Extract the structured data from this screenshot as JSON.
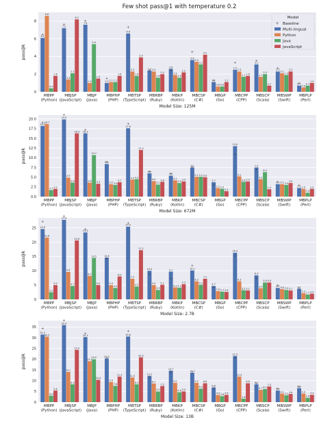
{
  "figure_title": "Few shot pass@1 with temperature 0.2",
  "legend": {
    "title": "Model",
    "items": [
      {
        "label": "Baseline",
        "marker": "+"
      },
      {
        "label": "Multi-lingual",
        "color": "#4C72B0"
      },
      {
        "label": "Python",
        "color": "#DD8452"
      },
      {
        "label": "Java",
        "color": "#55A868"
      },
      {
        "label": "JavaScript",
        "color": "#C44E52"
      }
    ]
  },
  "colors": {
    "background": "#EAEAF2",
    "grid": "#FFFFFF",
    "multi": "#4C72B0",
    "python": "#DD8452",
    "java": "#55A868",
    "javascript": "#C44E52"
  },
  "chart_data": [
    {
      "type": "bar",
      "xlabel": "Model Size: 125M",
      "ylabel": "pass@k",
      "ylim": [
        0,
        9
      ],
      "yticks": [
        0,
        2,
        4,
        6,
        8
      ],
      "categories": [
        "MBPP\n(Python)",
        "MBJSP\n(JavaScript)",
        "MBJP\n(Java)",
        "MBPHP\n(PHP)",
        "MBTSP\n(TypeScript)",
        "MBRBP\n(Ruby)",
        "MBKP\n(Kotlin)",
        "MBCSP\n(C#)",
        "MBGP\n(Go)",
        "MBCPP\n(CPP)",
        "MBSCP\n(Scala)",
        "MBSWP\n(Swift)",
        "MBPLP\n(Perl)"
      ],
      "series": [
        {
          "name": "Multi-lingual",
          "values": [
            6.1,
            7.2,
            7.6,
            1.0,
            6.6,
            2.4,
            2.6,
            3.6,
            1.1,
            2.5,
            3.1,
            2.3,
            0.7
          ]
        },
        {
          "name": "Python",
          "values": [
            8.6,
            1.4,
            1.0,
            1.1,
            2.3,
            2.3,
            1.9,
            3.4,
            0.6,
            2.3,
            1.7,
            2.1,
            0.5
          ]
        },
        {
          "name": "Java",
          "values": [
            0.4,
            2.1,
            5.4,
            1.1,
            1.8,
            1.6,
            1.6,
            3.1,
            0.6,
            1.7,
            2.0,
            1.9,
            0.7
          ]
        },
        {
          "name": "JavaScript",
          "values": [
            1.8,
            8.2,
            1.5,
            1.8,
            3.9,
            2.0,
            2.2,
            4.2,
            1.1,
            1.8,
            0.7,
            2.3,
            1.0
          ]
        }
      ],
      "baseline": [
        6.1,
        7.2,
        7.6,
        1.1,
        6.9,
        2.0,
        2.0,
        4.1,
        0.9,
        2.9,
        3.1,
        2.3,
        0.6
      ]
    },
    {
      "type": "bar",
      "xlabel": "Model Size: 672M",
      "ylabel": "pass@k",
      "ylim": [
        0,
        21
      ],
      "yticks": [
        0.0,
        2.5,
        5.0,
        7.5,
        10.0,
        12.5,
        15.0,
        17.5,
        20.0
      ],
      "categories": [
        "MBPP\n(Python)",
        "MBJSP\n(JavaScript)",
        "MBJP\n(Java)",
        "MBPHP\n(PHP)",
        "MBTSP\n(TypeScript)",
        "MBRBP\n(Ruby)",
        "MBKP\n(Kotlin)",
        "MBCSP\n(C#)",
        "MBGP\n(Go)",
        "MBCPP\n(CPP)",
        "MBSCP\n(Scala)",
        "MBSWP\n(Swift)",
        "MBPLP\n(Perl)"
      ],
      "series": [
        {
          "name": "Multi-lingual",
          "values": [
            18.2,
            19.9,
            16.3,
            8.4,
            17.6,
            6.0,
            5.4,
            7.5,
            3.7,
            13.0,
            7.5,
            3.2,
            2.2
          ]
        },
        {
          "name": "Python",
          "values": [
            18.7,
            4.9,
            3.6,
            3.2,
            4.4,
            4.0,
            4.2,
            5.1,
            2.2,
            5.2,
            4.5,
            3.2,
            2.0
          ]
        },
        {
          "name": "Java",
          "values": [
            1.7,
            3.6,
            10.7,
            3.0,
            4.5,
            3.1,
            3.5,
            5.1,
            2.0,
            3.8,
            6.3,
            3.0,
            1.0
          ]
        },
        {
          "name": "JavaScript",
          "values": [
            2.0,
            16.3,
            3.3,
            3.7,
            12.0,
            3.8,
            3.9,
            5.0,
            1.4,
            3.9,
            1.9,
            3.5,
            2.0
          ]
        }
      ],
      "baseline": [
        18.2,
        20.1,
        16.3,
        8.0,
        17.8,
        5.6,
        5.0,
        6.8,
        2.0,
        10.0,
        6.0,
        2.9,
        2.0
      ]
    },
    {
      "type": "bar",
      "xlabel": "Model Size: 2.7B",
      "ylabel": "pass@k",
      "ylim": [
        0,
        28.5
      ],
      "yticks": [
        0,
        5,
        10,
        15,
        20,
        25
      ],
      "categories": [
        "MBPP\n(Python)",
        "MBJSP\n(JavaScript)",
        "MBJP\n(Java)",
        "MBPHP\n(PHP)",
        "MBTSP\n(TypeScript)",
        "MBRBP\n(Ruby)",
        "MBKP\n(Kotlin)",
        "MBCSP\n(C#)",
        "MBGP\n(Go)",
        "MBCPP\n(CPP)",
        "MBSCP\n(Scala)",
        "MBSWP\n(Swift)",
        "MBPLP\n(Perl)"
      ],
      "series": [
        {
          "name": "Multi-lingual",
          "values": [
            24.6,
            27.8,
            23.4,
            14.6,
            25.4,
            10.0,
            9.7,
            10.1,
            4.7,
            16.3,
            8.4,
            4.0,
            3.7
          ]
        },
        {
          "name": "Python",
          "values": [
            21.6,
            9.6,
            8.2,
            5.0,
            7.2,
            5.0,
            4.2,
            6.3,
            2.9,
            6.3,
            3.9,
            3.6,
            2.2
          ]
        },
        {
          "name": "Java",
          "values": [
            2.5,
            4.7,
            14.5,
            4.0,
            4.5,
            3.3,
            4.1,
            5.1,
            2.7,
            3.2,
            5.9,
            3.3,
            1.7
          ]
        },
        {
          "name": "JavaScript",
          "values": [
            5.0,
            20.6,
            5.0,
            8.0,
            17.2,
            5.1,
            5.3,
            7.2,
            2.6,
            3.1,
            5.9,
            3.1,
            2.0
          ]
        }
      ],
      "baseline": [
        26.0,
        27.8,
        23.4,
        13.0,
        25.4,
        7.6,
        6.0,
        10.5,
        3.0,
        14.0,
        6.0,
        3.7,
        2.7
      ]
    },
    {
      "type": "bar",
      "xlabel": "Model Size: 13B",
      "ylabel": "pass@k",
      "ylim": [
        0,
        38
      ],
      "yticks": [
        0,
        5,
        10,
        15,
        20,
        25,
        30,
        35
      ],
      "categories": [
        "MBPP\n(Python)",
        "MBJSP\n(JavaScript)",
        "MBJP\n(Java)",
        "MBPHP\n(PHP)",
        "MBTSP\n(TypeScript)",
        "MBRBP\n(Ruby)",
        "MBKP\n(Kotlin)",
        "MBCSP\n(C#)",
        "MBGP\n(Go)",
        "MBCPP\n(CPP)",
        "MBSCP\n(Scala)",
        "MBSWP\n(Swift)",
        "MBPLP\n(Perl)"
      ],
      "series": [
        {
          "name": "Multi-lingual",
          "values": [
            31.5,
            35.9,
            30.3,
            20.3,
            30.6,
            12.2,
            14.7,
            13.7,
            6.8,
            21.5,
            8.3,
            5.4,
            6.5
          ]
        },
        {
          "name": "Python",
          "values": [
            30.5,
            14.1,
            19.1,
            9.4,
            11.5,
            8.7,
            9.0,
            9.0,
            3.4,
            11.9,
            5.7,
            4.0,
            4.0
          ]
        },
        {
          "name": "Java",
          "values": [
            3.0,
            8.3,
            20.0,
            7.6,
            8.3,
            5.0,
            4.6,
            6.3,
            2.8,
            1.6,
            6.1,
            3.2,
            2.0
          ]
        },
        {
          "name": "JavaScript",
          "values": [
            5.4,
            24.4,
            10.4,
            11.9,
            20.9,
            7.5,
            5.0,
            8.8,
            3.4,
            8.8,
            7.3,
            3.8,
            3.4
          ]
        }
      ],
      "baseline": [
        32.8,
        36.4,
        30.3,
        19.0,
        31.5,
        10.0,
        12.0,
        12.5,
        5.0,
        19.0,
        7.0,
        4.6,
        5.5
      ]
    }
  ]
}
